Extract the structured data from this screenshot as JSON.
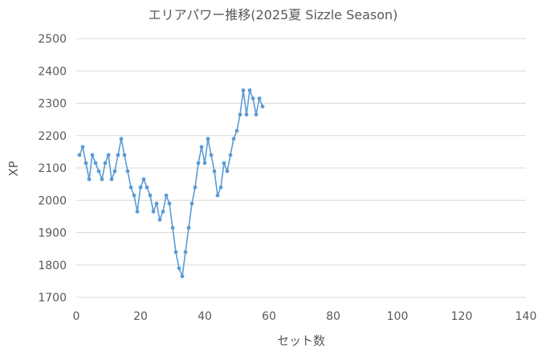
{
  "chart_data": {
    "type": "line",
    "title": "エリアパワー推移(2025夏 Sizzle Season)",
    "xlabel": "セット数",
    "ylabel": "XP",
    "xlim": [
      0,
      140
    ],
    "ylim": [
      1700,
      2500
    ],
    "x_ticks": [
      "0",
      "20",
      "40",
      "60",
      "80",
      "100",
      "120",
      "140"
    ],
    "y_ticks": [
      "1700",
      "1800",
      "1900",
      "2000",
      "2100",
      "2200",
      "2300",
      "2400",
      "2500"
    ],
    "grid": "horizontal",
    "legend": "none",
    "line_color": "#5b9bd5",
    "series": [
      {
        "x": [
          1,
          2,
          3,
          4,
          5,
          6,
          7,
          8,
          9,
          10,
          11,
          12,
          13,
          14,
          15,
          16,
          17,
          18,
          19,
          20,
          21,
          22,
          23,
          24,
          25,
          26,
          27,
          28,
          29,
          30,
          31,
          32,
          33,
          34,
          35,
          36,
          37,
          38,
          39,
          40,
          41,
          42,
          43,
          44,
          45,
          46,
          47,
          48,
          49,
          50,
          51,
          52,
          53,
          54,
          55,
          56,
          57,
          58
        ],
        "values": [
          2140,
          2165,
          2115,
          2065,
          2140,
          2115,
          2090,
          2065,
          2115,
          2140,
          2065,
          2090,
          2140,
          2190,
          2140,
          2090,
          2040,
          2015,
          1965,
          2040,
          2065,
          2040,
          2015,
          1965,
          1990,
          1940,
          1965,
          2015,
          1990,
          1915,
          1840,
          1790,
          1765,
          1840,
          1915,
          1990,
          2040,
          2115,
          2165,
          2115,
          2190,
          2140,
          2090,
          2015,
          2040,
          2115,
          2090,
          2140,
          2190,
          2215,
          2265,
          2340,
          2265,
          2340,
          2315,
          2265,
          2315,
          2290
        ]
      }
    ]
  }
}
